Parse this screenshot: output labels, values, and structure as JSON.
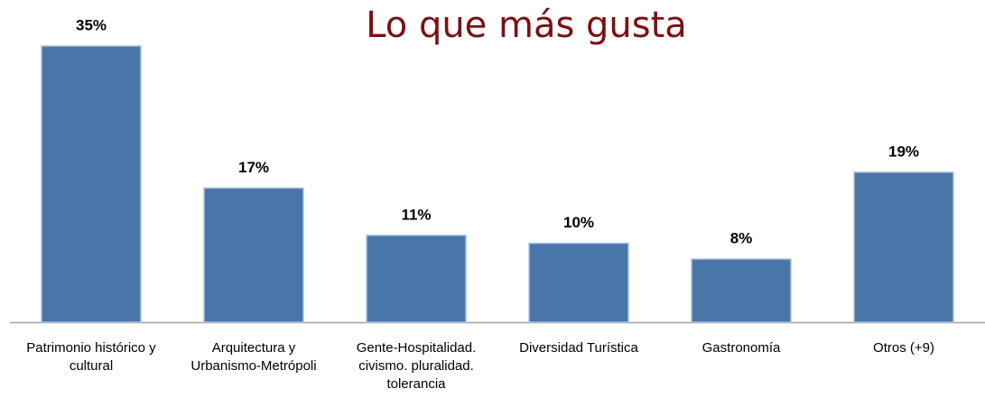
{
  "chart_data": {
    "type": "bar",
    "title": "Lo que más gusta",
    "categories": [
      "Patrimonio histórico y\ncultural",
      "Arquitectura y\nUrbanismo-Metrópoli",
      "Gente-Hospitalidad.\ncivismo. pluralidad.\ntolerancia",
      "Diversidad Turística",
      "Gastronomía",
      "Otros (+9)"
    ],
    "values": [
      35,
      17,
      11,
      10,
      8,
      19
    ],
    "value_labels": [
      "35%",
      "17%",
      "11%",
      "10%",
      "8%",
      "19%"
    ],
    "color": "#4a75a8"
  }
}
